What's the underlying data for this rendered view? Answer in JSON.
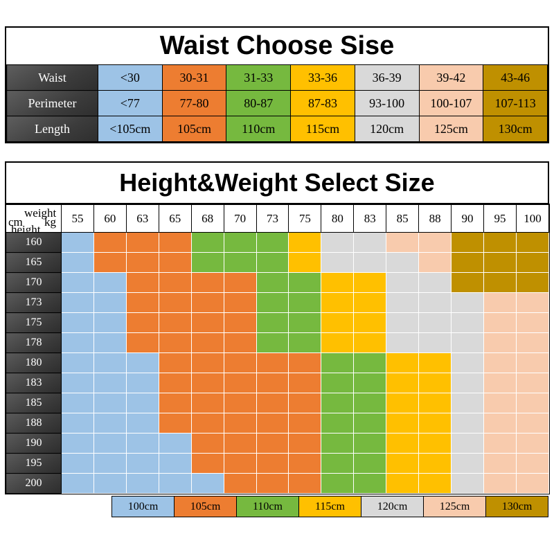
{
  "colors": {
    "B": "#9DC3E6",
    "O": "#ED7D31",
    "G": "#76B93F",
    "Y": "#FFC000",
    "S": "#D9D9D9",
    "P": "#F8CBAD",
    "D": "#BF9000",
    "header_dark": "#3F3F3F"
  },
  "waist_table": {
    "title": "Waist Choose Sise",
    "row_labels": [
      "Waist",
      "Perimeter",
      "Length"
    ],
    "column_codes": [
      "B",
      "O",
      "G",
      "Y",
      "S",
      "P",
      "D"
    ],
    "rows": [
      [
        "<30",
        "30-31",
        "31-33",
        "33-36",
        "36-39",
        "39-42",
        "43-46"
      ],
      [
        "<77",
        "77-80",
        "80-87",
        "87-83",
        "93-100",
        "100-107",
        "107-113"
      ],
      [
        "<105cm",
        "105cm",
        "110cm",
        "115cm",
        "120cm",
        "125cm",
        "130cm"
      ]
    ]
  },
  "hw_table": {
    "title": "Height&Weight Select Size",
    "corner": {
      "weight_label": "weight",
      "weight_unit": "kg",
      "height_unit": "cm",
      "height_label": "height"
    },
    "weights": [
      "55",
      "60",
      "63",
      "65",
      "68",
      "70",
      "73",
      "75",
      "80",
      "83",
      "85",
      "88",
      "90",
      "95",
      "100"
    ],
    "heights": [
      "160",
      "165",
      "170",
      "173",
      "175",
      "178",
      "180",
      "183",
      "185",
      "188",
      "190",
      "195",
      "200"
    ],
    "grid": [
      "BOOOGGGYSSPPDDD",
      "BOOOGGGYSSSPDDD",
      "BBOOOOGGYYSSDDD",
      "BBOOOOGGYYSSSPP",
      "BBOOOOGGYYSSSPP",
      "BBOOOOGGYYSSSPP",
      "BBBOOOOOGGYYSPP",
      "BBBOOOOOGGYYSPP",
      "BBBOOOOOGGYYSPP",
      "BBBOOOOOGGYYSPP",
      "BBBBOOOOGGYYSPP",
      "BBBBOOOOGGYYSPP",
      "BBBBBOOOGGYYSPP"
    ]
  },
  "legend": [
    {
      "label": "100cm",
      "code": "B"
    },
    {
      "label": "105cm",
      "code": "O"
    },
    {
      "label": "110cm",
      "code": "G"
    },
    {
      "label": "115cm",
      "code": "Y"
    },
    {
      "label": "120cm",
      "code": "S"
    },
    {
      "label": "125cm",
      "code": "P"
    },
    {
      "label": "130cm",
      "code": "D"
    }
  ],
  "chart_data": [
    {
      "type": "table",
      "title": "Waist Choose Sise",
      "rows": [
        [
          "Waist",
          "<30",
          "30-31",
          "31-33",
          "33-36",
          "36-39",
          "39-42",
          "43-46"
        ],
        [
          "Perimeter",
          "<77",
          "77-80",
          "80-87",
          "87-83",
          "93-100",
          "100-107",
          "107-113"
        ],
        [
          "Length",
          "<105cm",
          "105cm",
          "110cm",
          "115cm",
          "120cm",
          "125cm",
          "130cm"
        ]
      ]
    },
    {
      "type": "heatmap",
      "title": "Height&Weight Select Size",
      "xlabel": "weight kg",
      "ylabel": "height cm",
      "x": [
        55,
        60,
        63,
        65,
        68,
        70,
        73,
        75,
        80,
        83,
        85,
        88,
        90,
        95,
        100
      ],
      "y": [
        160,
        165,
        170,
        173,
        175,
        178,
        180,
        183,
        185,
        188,
        190,
        195,
        200
      ],
      "code_to_size": {
        "B": "100cm",
        "O": "105cm",
        "G": "110cm",
        "Y": "115cm",
        "S": "120cm",
        "P": "125cm",
        "D": "130cm"
      },
      "grid": [
        "BOOOGGGYSSPPDDD",
        "BOOOGGGYSSSPDDD",
        "BBOOOOGGYYSSDDD",
        "BBOOOOGGYYSSSPP",
        "BBOOOOGGYYSSSPP",
        "BBOOOOGGYYSSSPP",
        "BBBOOOOOGGYYSPP",
        "BBBOOOOOGGYYSPP",
        "BBBOOOOOGGYYSPP",
        "BBBOOOOOGGYYSPP",
        "BBBBOOOOGGYYSPP",
        "BBBBOOOOGGYYSPP",
        "BBBBBOOOGGYYSPP"
      ],
      "legend_position": "bottom"
    }
  ]
}
